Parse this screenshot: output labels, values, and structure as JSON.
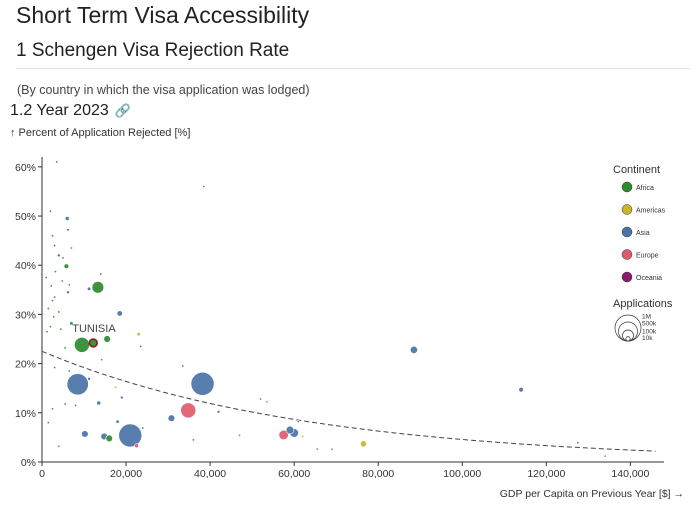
{
  "header": {
    "title": "Short Term Visa Accessibility",
    "section": "1 Schengen Visa Rejection Rate",
    "subtitle": "(By country in which the visa application was lodged)",
    "subsection": "1.2 Year 2023",
    "link_icon": "link-icon"
  },
  "chart_data": {
    "type": "scatter",
    "xlabel": "GDP per Capita on Previous Year [$] →",
    "ylabel": "↑ Percent of Application Rejected [%]",
    "xlim": [
      0,
      148000
    ],
    "ylim": [
      0,
      62
    ],
    "x_ticks": [
      0,
      20000,
      40000,
      60000,
      80000,
      100000,
      120000,
      140000
    ],
    "x_tick_labels": [
      "0",
      "20,000",
      "40,000",
      "60,000",
      "80,000",
      "100,000",
      "120,000",
      "140,000"
    ],
    "y_ticks": [
      0,
      10,
      20,
      30,
      40,
      50,
      60
    ],
    "y_tick_labels": [
      "0%",
      "10%",
      "20%",
      "30%",
      "40%",
      "50%",
      "60%"
    ],
    "grid": false,
    "legend_title": "Continent",
    "legend_position": "right",
    "continents": [
      {
        "name": "Africa",
        "color": "#2e8b2e"
      },
      {
        "name": "Americas",
        "color": "#c9b52a"
      },
      {
        "name": "Asia",
        "color": "#4a73a8"
      },
      {
        "name": "Europe",
        "color": "#e05a6e"
      },
      {
        "name": "Oceania",
        "color": "#8e1a6e"
      }
    ],
    "size_legend_title": "Applications",
    "size_legend_values": [
      "1M",
      "500k",
      "100k",
      "10k"
    ],
    "annotation": {
      "text": "TUNISIA",
      "x": 12200,
      "y": 24.2
    },
    "trend": {
      "type": "fit",
      "from": [
        0,
        22.5
      ],
      "to": [
        146000,
        2.2
      ]
    },
    "points": [
      {
        "x": 3500,
        "y": 61,
        "apps": 500,
        "c": 0
      },
      {
        "x": 38500,
        "y": 56,
        "apps": 300,
        "c": 2
      },
      {
        "x": 2000,
        "y": 51,
        "apps": 800,
        "c": 0
      },
      {
        "x": 6000,
        "y": 49.5,
        "apps": 22000,
        "c": 2
      },
      {
        "x": 6200,
        "y": 47.2,
        "apps": 9000,
        "c": 0
      },
      {
        "x": 2500,
        "y": 46,
        "apps": 3000,
        "c": 0
      },
      {
        "x": 3000,
        "y": 44,
        "apps": 2000,
        "c": 0
      },
      {
        "x": 7000,
        "y": 43.5,
        "apps": 6000,
        "c": 2
      },
      {
        "x": 4000,
        "y": 42,
        "apps": 12000,
        "c": 0
      },
      {
        "x": 5000,
        "y": 41.5,
        "apps": 3000,
        "c": 0
      },
      {
        "x": 5800,
        "y": 39.8,
        "apps": 30000,
        "c": 0
      },
      {
        "x": 3200,
        "y": 38.7,
        "apps": 1500,
        "c": 0
      },
      {
        "x": 1000,
        "y": 37.5,
        "apps": 1000,
        "c": 0
      },
      {
        "x": 14000,
        "y": 38.2,
        "apps": 6000,
        "c": 2
      },
      {
        "x": 4800,
        "y": 36.8,
        "apps": 2000,
        "c": 0
      },
      {
        "x": 6500,
        "y": 36,
        "apps": 3000,
        "c": 0
      },
      {
        "x": 2200,
        "y": 35.8,
        "apps": 1500,
        "c": 0
      },
      {
        "x": 13300,
        "y": 35.5,
        "apps": 180000,
        "c": 0
      },
      {
        "x": 11200,
        "y": 35.2,
        "apps": 16000,
        "c": 2
      },
      {
        "x": 6200,
        "y": 34.5,
        "apps": 12000,
        "c": 0
      },
      {
        "x": 3000,
        "y": 33.5,
        "apps": 2000,
        "c": 0
      },
      {
        "x": 2500,
        "y": 32.8,
        "apps": 2500,
        "c": 0
      },
      {
        "x": 1500,
        "y": 31.2,
        "apps": 1500,
        "c": 0
      },
      {
        "x": 4000,
        "y": 30.5,
        "apps": 3000,
        "c": 0
      },
      {
        "x": 18500,
        "y": 30.2,
        "apps": 40000,
        "c": 2
      },
      {
        "x": 2800,
        "y": 29.5,
        "apps": 1500,
        "c": 0
      },
      {
        "x": 7000,
        "y": 28.2,
        "apps": 16000,
        "c": 0
      },
      {
        "x": 2000,
        "y": 27.5,
        "apps": 1500,
        "c": 0
      },
      {
        "x": 4500,
        "y": 27,
        "apps": 2000,
        "c": 0
      },
      {
        "x": 1200,
        "y": 26.5,
        "apps": 3000,
        "c": 0
      },
      {
        "x": 23000,
        "y": 26,
        "apps": 16000,
        "c": 1
      },
      {
        "x": 15500,
        "y": 25,
        "apps": 60000,
        "c": 0
      },
      {
        "x": 9500,
        "y": 23.8,
        "apps": 300000,
        "c": 0
      },
      {
        "x": 12200,
        "y": 24.2,
        "apps": 80000,
        "c": 0,
        "label": "TUNISIA"
      },
      {
        "x": 5500,
        "y": 23.2,
        "apps": 3000,
        "c": 0
      },
      {
        "x": 23500,
        "y": 23.5,
        "apps": 4000,
        "c": 0
      },
      {
        "x": 14200,
        "y": 20.8,
        "apps": 3000,
        "c": 2
      },
      {
        "x": 88500,
        "y": 22.8,
        "apps": 70000,
        "c": 2
      },
      {
        "x": 3000,
        "y": 19.2,
        "apps": 2000,
        "c": 2
      },
      {
        "x": 6500,
        "y": 18.5,
        "apps": 2000,
        "c": 2
      },
      {
        "x": 33500,
        "y": 19.5,
        "apps": 1000,
        "c": 2
      },
      {
        "x": 11200,
        "y": 16.9,
        "apps": 12000,
        "c": 2
      },
      {
        "x": 8500,
        "y": 15.8,
        "apps": 600000,
        "c": 2
      },
      {
        "x": 38200,
        "y": 15.9,
        "apps": 700000,
        "c": 2
      },
      {
        "x": 17500,
        "y": 15.2,
        "apps": 2000,
        "c": 1
      },
      {
        "x": 114000,
        "y": 14.7,
        "apps": 30000,
        "c": 2
      },
      {
        "x": 19000,
        "y": 13.1,
        "apps": 12000,
        "c": 2
      },
      {
        "x": 52000,
        "y": 12.8,
        "apps": 2000,
        "c": 2
      },
      {
        "x": 53500,
        "y": 12.2,
        "apps": 1500,
        "c": 3
      },
      {
        "x": 5500,
        "y": 11.8,
        "apps": 1500,
        "c": 2
      },
      {
        "x": 13500,
        "y": 12,
        "apps": 22000,
        "c": 2
      },
      {
        "x": 8000,
        "y": 11.5,
        "apps": 2000,
        "c": 2
      },
      {
        "x": 2500,
        "y": 10.8,
        "apps": 1500,
        "c": 2
      },
      {
        "x": 34800,
        "y": 10.5,
        "apps": 300000,
        "c": 3
      },
      {
        "x": 42000,
        "y": 10.2,
        "apps": 12000,
        "c": 2
      },
      {
        "x": 30800,
        "y": 8.9,
        "apps": 60000,
        "c": 2
      },
      {
        "x": 18000,
        "y": 8.2,
        "apps": 16000,
        "c": 2
      },
      {
        "x": 1500,
        "y": 8,
        "apps": 2000,
        "c": 0
      },
      {
        "x": 24000,
        "y": 6.9,
        "apps": 4000,
        "c": 2
      },
      {
        "x": 10200,
        "y": 5.7,
        "apps": 60000,
        "c": 2
      },
      {
        "x": 14800,
        "y": 5.2,
        "apps": 60000,
        "c": 2
      },
      {
        "x": 16000,
        "y": 4.8,
        "apps": 60000,
        "c": 0
      },
      {
        "x": 21000,
        "y": 5.4,
        "apps": 700000,
        "c": 2
      },
      {
        "x": 22500,
        "y": 3.3,
        "apps": 22000,
        "c": 3
      },
      {
        "x": 36000,
        "y": 4.5,
        "apps": 1500,
        "c": 2
      },
      {
        "x": 47000,
        "y": 5.4,
        "apps": 2000,
        "c": 3
      },
      {
        "x": 59000,
        "y": 6.5,
        "apps": 80000,
        "c": 2
      },
      {
        "x": 60000,
        "y": 5.9,
        "apps": 100000,
        "c": 2
      },
      {
        "x": 57500,
        "y": 5.5,
        "apps": 120000,
        "c": 3
      },
      {
        "x": 62000,
        "y": 5.2,
        "apps": 3000,
        "c": 1
      },
      {
        "x": 61000,
        "y": 8.2,
        "apps": 4000,
        "c": 2
      },
      {
        "x": 76500,
        "y": 3.7,
        "apps": 50000,
        "c": 1
      },
      {
        "x": 65500,
        "y": 2.6,
        "apps": 2000,
        "c": 3
      },
      {
        "x": 69000,
        "y": 2.6,
        "apps": 1500,
        "c": 3
      },
      {
        "x": 4000,
        "y": 3.2,
        "apps": 2000,
        "c": 2
      },
      {
        "x": 127500,
        "y": 3.9,
        "apps": 6000,
        "c": 2
      },
      {
        "x": 134000,
        "y": 1.2,
        "apps": 5000,
        "c": 3
      }
    ]
  }
}
